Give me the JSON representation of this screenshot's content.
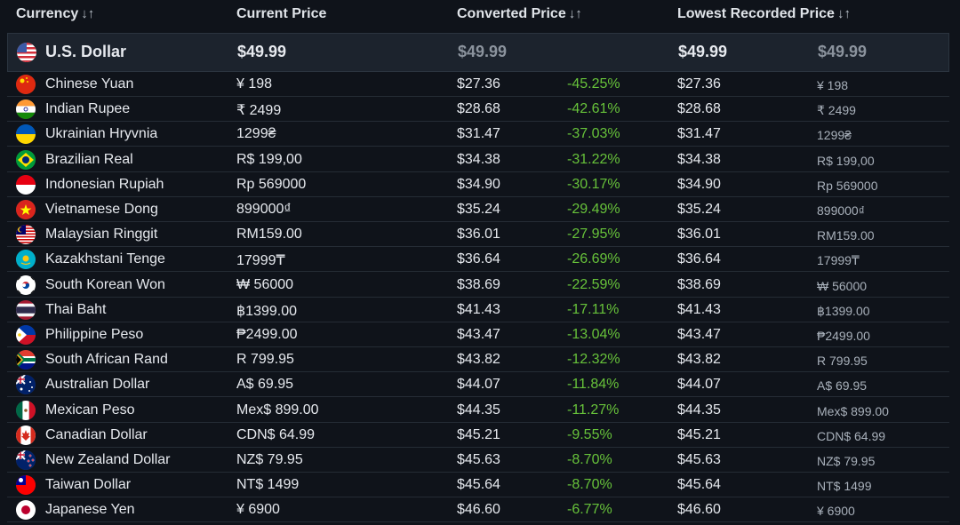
{
  "headers": {
    "currency": "Currency",
    "current_price": "Current Price",
    "converted_price": "Converted Price",
    "lowest_price": "Lowest Recorded Price",
    "sort_glyph": "↓↑"
  },
  "base": {
    "currency": "U.S. Dollar",
    "flag": "us-flag-icon",
    "current": "$49.99",
    "converted": "$49.99",
    "lowest": "$49.99",
    "lowest_local": "$49.99"
  },
  "rows": [
    {
      "currency": "Chinese Yuan",
      "flag": "cn",
      "current": "¥ 198",
      "converted": "$27.36",
      "pct": "-45.25%",
      "lowest": "$27.36",
      "lowest_local": "¥ 198"
    },
    {
      "currency": "Indian Rupee",
      "flag": "in",
      "current": "₹ 2499",
      "converted": "$28.68",
      "pct": "-42.61%",
      "lowest": "$28.68",
      "lowest_local": "₹ 2499"
    },
    {
      "currency": "Ukrainian Hryvnia",
      "flag": "ua",
      "current": "1299₴",
      "converted": "$31.47",
      "pct": "-37.03%",
      "lowest": "$31.47",
      "lowest_local": "1299₴"
    },
    {
      "currency": "Brazilian Real",
      "flag": "br",
      "current": "R$ 199,00",
      "converted": "$34.38",
      "pct": "-31.22%",
      "lowest": "$34.38",
      "lowest_local": "R$ 199,00"
    },
    {
      "currency": "Indonesian Rupiah",
      "flag": "id",
      "current": "Rp 569000",
      "converted": "$34.90",
      "pct": "-30.17%",
      "lowest": "$34.90",
      "lowest_local": "Rp 569000"
    },
    {
      "currency": "Vietnamese Dong",
      "flag": "vn",
      "current": "899000₫",
      "converted": "$35.24",
      "pct": "-29.49%",
      "lowest": "$35.24",
      "lowest_local": "899000₫"
    },
    {
      "currency": "Malaysian Ringgit",
      "flag": "my",
      "current": "RM159.00",
      "converted": "$36.01",
      "pct": "-27.95%",
      "lowest": "$36.01",
      "lowest_local": "RM159.00"
    },
    {
      "currency": "Kazakhstani Tenge",
      "flag": "kz",
      "current": "17999₸",
      "converted": "$36.64",
      "pct": "-26.69%",
      "lowest": "$36.64",
      "lowest_local": "17999₸"
    },
    {
      "currency": "South Korean Won",
      "flag": "kr",
      "current": "₩ 56000",
      "converted": "$38.69",
      "pct": "-22.59%",
      "lowest": "$38.69",
      "lowest_local": "₩ 56000"
    },
    {
      "currency": "Thai Baht",
      "flag": "th",
      "current": "฿1399.00",
      "converted": "$41.43",
      "pct": "-17.11%",
      "lowest": "$41.43",
      "lowest_local": "฿1399.00"
    },
    {
      "currency": "Philippine Peso",
      "flag": "ph",
      "current": "₱2499.00",
      "converted": "$43.47",
      "pct": "-13.04%",
      "lowest": "$43.47",
      "lowest_local": "₱2499.00"
    },
    {
      "currency": "South African Rand",
      "flag": "za",
      "current": "R 799.95",
      "converted": "$43.82",
      "pct": "-12.32%",
      "lowest": "$43.82",
      "lowest_local": "R 799.95"
    },
    {
      "currency": "Australian Dollar",
      "flag": "au",
      "current": "A$ 69.95",
      "converted": "$44.07",
      "pct": "-11.84%",
      "lowest": "$44.07",
      "lowest_local": "A$ 69.95"
    },
    {
      "currency": "Mexican Peso",
      "flag": "mx",
      "current": "Mex$ 899.00",
      "converted": "$44.35",
      "pct": "-11.27%",
      "lowest": "$44.35",
      "lowest_local": "Mex$ 899.00"
    },
    {
      "currency": "Canadian Dollar",
      "flag": "ca",
      "current": "CDN$ 64.99",
      "converted": "$45.21",
      "pct": "-9.55%",
      "lowest": "$45.21",
      "lowest_local": "CDN$ 64.99"
    },
    {
      "currency": "New Zealand Dollar",
      "flag": "nz",
      "current": "NZ$ 79.95",
      "converted": "$45.63",
      "pct": "-8.70%",
      "lowest": "$45.63",
      "lowest_local": "NZ$ 79.95"
    },
    {
      "currency": "Taiwan Dollar",
      "flag": "tw",
      "current": "NT$ 1499",
      "converted": "$45.64",
      "pct": "-8.70%",
      "lowest": "$45.64",
      "lowest_local": "NT$ 1499"
    },
    {
      "currency": "Japanese Yen",
      "flag": "jp",
      "current": "¥ 6900",
      "converted": "$46.60",
      "pct": "-6.77%",
      "lowest": "$46.60",
      "lowest_local": "¥ 6900"
    }
  ],
  "colors": {
    "positive_pct": "#67c23a",
    "background": "#0f131a",
    "base_row": "#1c232d"
  }
}
